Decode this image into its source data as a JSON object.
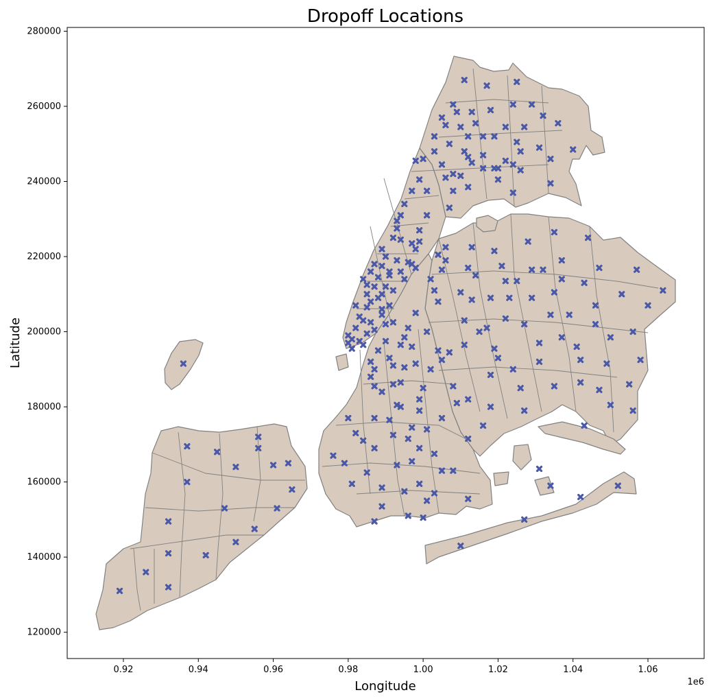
{
  "chart_data": {
    "type": "scatter",
    "title": "Dropoff Locations",
    "xlabel": "Longitude",
    "ylabel": "Latitude",
    "x_offset_label": "1e6",
    "xlim": [
      0.905,
      1.075
    ],
    "ylim": [
      113000,
      281000
    ],
    "x_ticks": [
      0.92,
      0.94,
      0.96,
      0.98,
      1.0,
      1.02,
      1.04,
      1.06
    ],
    "x_tick_labels": [
      "0.92",
      "0.94",
      "0.96",
      "0.98",
      "1.00",
      "1.02",
      "1.04",
      "1.06"
    ],
    "y_ticks": [
      120000,
      140000,
      160000,
      180000,
      200000,
      220000,
      240000,
      260000,
      280000
    ],
    "y_tick_labels": [
      "120000",
      "140000",
      "160000",
      "180000",
      "200000",
      "220000",
      "240000",
      "260000",
      "280000"
    ],
    "grid": false,
    "colors": {
      "land": "#d8cbbe",
      "border": "#808080",
      "marker": "#4a58a8"
    },
    "marker": "x",
    "points": [
      [
        0.936,
        191500
      ],
      [
        0.919,
        131000
      ],
      [
        0.926,
        136000
      ],
      [
        0.932,
        132000
      ],
      [
        0.932,
        141000
      ],
      [
        0.932,
        149500
      ],
      [
        0.937,
        160000
      ],
      [
        0.937,
        169500
      ],
      [
        0.942,
        140500
      ],
      [
        0.945,
        168000
      ],
      [
        0.947,
        153000
      ],
      [
        0.95,
        164000
      ],
      [
        0.95,
        144000
      ],
      [
        0.955,
        147500
      ],
      [
        0.956,
        172000
      ],
      [
        0.956,
        169000
      ],
      [
        0.96,
        164500
      ],
      [
        0.961,
        153000
      ],
      [
        0.964,
        165000
      ],
      [
        0.965,
        158000
      ],
      [
        0.98,
        199000
      ],
      [
        0.98,
        197000
      ],
      [
        0.981,
        195500
      ],
      [
        0.981,
        198000
      ],
      [
        0.982,
        201000
      ],
      [
        0.983,
        197500
      ],
      [
        0.984,
        196500
      ],
      [
        0.983,
        204000
      ],
      [
        0.982,
        207000
      ],
      [
        0.985,
        199500
      ],
      [
        0.984,
        203000
      ],
      [
        0.985,
        206500
      ],
      [
        0.986,
        202500
      ],
      [
        0.987,
        200500
      ],
      [
        0.985,
        210000
      ],
      [
        0.986,
        208000
      ],
      [
        0.987,
        212000
      ],
      [
        0.985,
        212500
      ],
      [
        0.984,
        214000
      ],
      [
        0.986,
        216000
      ],
      [
        0.987,
        218000
      ],
      [
        0.988,
        214500
      ],
      [
        0.988,
        209000
      ],
      [
        0.989,
        206000
      ],
      [
        0.989,
        204500
      ],
      [
        0.99,
        202000
      ],
      [
        0.989,
        210000
      ],
      [
        0.99,
        212000
      ],
      [
        0.989,
        217500
      ],
      [
        0.99,
        220000
      ],
      [
        0.989,
        222000
      ],
      [
        0.991,
        216000
      ],
      [
        0.991,
        215000
      ],
      [
        0.992,
        211000
      ],
      [
        0.991,
        207000
      ],
      [
        0.992,
        202500
      ],
      [
        0.992,
        225000
      ],
      [
        0.993,
        227500
      ],
      [
        0.993,
        229500
      ],
      [
        0.994,
        231000
      ],
      [
        0.995,
        234000
      ],
      [
        0.993,
        219000
      ],
      [
        0.994,
        216000
      ],
      [
        0.995,
        214000
      ],
      [
        0.994,
        224500
      ],
      [
        0.996,
        218500
      ],
      [
        0.997,
        218000
      ],
      [
        0.998,
        217000
      ],
      [
        0.997,
        223500
      ],
      [
        0.998,
        222000
      ],
      [
        0.999,
        227000
      ],
      [
        0.999,
        224000
      ],
      [
        0.997,
        237500
      ],
      [
        0.999,
        240500
      ],
      [
        1.001,
        237500
      ],
      [
        0.998,
        245500
      ],
      [
        1.0,
        246000
      ],
      [
        1.001,
        231000
      ],
      [
        1.003,
        248000
      ],
      [
        1.003,
        252000
      ],
      [
        1.005,
        257000
      ],
      [
        1.005,
        244500
      ],
      [
        1.006,
        241000
      ],
      [
        1.006,
        255000
      ],
      [
        1.007,
        250000
      ],
      [
        1.008,
        242000
      ],
      [
        1.008,
        237500
      ],
      [
        1.007,
        233000
      ],
      [
        1.008,
        260500
      ],
      [
        1.009,
        258500
      ],
      [
        1.01,
        254500
      ],
      [
        1.011,
        267000
      ],
      [
        1.01,
        241500
      ],
      [
        1.011,
        248000
      ],
      [
        1.012,
        246500
      ],
      [
        1.012,
        252000
      ],
      [
        1.013,
        258500
      ],
      [
        1.013,
        245000
      ],
      [
        1.012,
        238500
      ],
      [
        1.014,
        255500
      ],
      [
        1.016,
        252000
      ],
      [
        1.016,
        247000
      ],
      [
        1.016,
        243500
      ],
      [
        1.017,
        265500
      ],
      [
        1.018,
        259000
      ],
      [
        1.019,
        252000
      ],
      [
        1.019,
        243500
      ],
      [
        1.02,
        240500
      ],
      [
        1.02,
        243500
      ],
      [
        1.022,
        254500
      ],
      [
        1.022,
        245500
      ],
      [
        1.024,
        260500
      ],
      [
        1.024,
        244500
      ],
      [
        1.024,
        237000
      ],
      [
        1.025,
        250500
      ],
      [
        1.025,
        266500
      ],
      [
        1.026,
        248000
      ],
      [
        1.026,
        243000
      ],
      [
        1.027,
        254500
      ],
      [
        1.029,
        260500
      ],
      [
        1.031,
        249000
      ],
      [
        1.032,
        257500
      ],
      [
        1.034,
        239500
      ],
      [
        1.034,
        246000
      ],
      [
        1.036,
        255500
      ],
      [
        1.04,
        248500
      ],
      [
        0.986,
        192000
      ],
      [
        0.986,
        188000
      ],
      [
        0.987,
        185500
      ],
      [
        0.987,
        190000
      ],
      [
        0.988,
        195000
      ],
      [
        0.989,
        184000
      ],
      [
        0.99,
        197500
      ],
      [
        0.991,
        193000
      ],
      [
        0.992,
        191000
      ],
      [
        0.992,
        186000
      ],
      [
        0.993,
        180500
      ],
      [
        0.994,
        196500
      ],
      [
        0.994,
        186500
      ],
      [
        0.995,
        190500
      ],
      [
        0.995,
        198500
      ],
      [
        0.996,
        201000
      ],
      [
        0.997,
        196000
      ],
      [
        0.998,
        191500
      ],
      [
        0.998,
        205000
      ],
      [
        0.999,
        182000
      ],
      [
        0.999,
        179000
      ],
      [
        1.0,
        185000
      ],
      [
        1.001,
        200000
      ],
      [
        1.002,
        190000
      ],
      [
        1.003,
        211000
      ],
      [
        1.004,
        195000
      ],
      [
        1.005,
        192500
      ],
      [
        1.004,
        208000
      ],
      [
        1.005,
        216500
      ],
      [
        1.006,
        222500
      ],
      [
        1.004,
        220500
      ],
      [
        1.002,
        214000
      ],
      [
        1.006,
        219000
      ],
      [
        1.007,
        194500
      ],
      [
        1.008,
        185500
      ],
      [
        1.009,
        181000
      ],
      [
        1.01,
        210500
      ],
      [
        1.011,
        203000
      ],
      [
        1.011,
        196500
      ],
      [
        1.012,
        182000
      ],
      [
        1.012,
        217000
      ],
      [
        1.013,
        222500
      ],
      [
        1.013,
        208500
      ],
      [
        1.014,
        215000
      ],
      [
        1.015,
        200000
      ],
      [
        1.016,
        175000
      ],
      [
        1.017,
        201000
      ],
      [
        1.018,
        188500
      ],
      [
        1.018,
        180000
      ],
      [
        1.018,
        209000
      ],
      [
        1.019,
        195500
      ],
      [
        1.019,
        221500
      ],
      [
        1.02,
        193000
      ],
      [
        1.021,
        217500
      ],
      [
        1.022,
        203500
      ],
      [
        1.022,
        213500
      ],
      [
        1.023,
        209000
      ],
      [
        1.024,
        190000
      ],
      [
        1.025,
        213500
      ],
      [
        1.026,
        185000
      ],
      [
        1.027,
        202000
      ],
      [
        1.027,
        179000
      ],
      [
        1.028,
        224000
      ],
      [
        1.029,
        209000
      ],
      [
        1.029,
        216500
      ],
      [
        1.031,
        197000
      ],
      [
        1.031,
        192000
      ],
      [
        1.032,
        216500
      ],
      [
        1.034,
        204500
      ],
      [
        1.035,
        210500
      ],
      [
        1.035,
        226500
      ],
      [
        1.035,
        185500
      ],
      [
        1.037,
        219000
      ],
      [
        1.037,
        214000
      ],
      [
        1.037,
        198500
      ],
      [
        1.039,
        204500
      ],
      [
        1.041,
        196000
      ],
      [
        1.042,
        192500
      ],
      [
        1.042,
        186500
      ],
      [
        1.043,
        213000
      ],
      [
        1.044,
        225000
      ],
      [
        1.043,
        175000
      ],
      [
        1.046,
        207000
      ],
      [
        1.046,
        202000
      ],
      [
        1.047,
        184500
      ],
      [
        1.047,
        217000
      ],
      [
        1.049,
        191500
      ],
      [
        1.05,
        198500
      ],
      [
        1.05,
        180500
      ],
      [
        1.053,
        210000
      ],
      [
        1.055,
        186000
      ],
      [
        1.056,
        200000
      ],
      [
        1.057,
        216500
      ],
      [
        1.056,
        179000
      ],
      [
        1.058,
        192500
      ],
      [
        1.06,
        207000
      ],
      [
        1.064,
        211000
      ],
      [
        0.976,
        167000
      ],
      [
        0.979,
        165000
      ],
      [
        0.98,
        177000
      ],
      [
        0.981,
        159500
      ],
      [
        0.982,
        173000
      ],
      [
        0.984,
        171000
      ],
      [
        0.985,
        162500
      ],
      [
        0.987,
        177000
      ],
      [
        0.987,
        169000
      ],
      [
        0.987,
        149500
      ],
      [
        0.989,
        158500
      ],
      [
        0.989,
        153500
      ],
      [
        0.991,
        176500
      ],
      [
        0.992,
        172500
      ],
      [
        0.993,
        164500
      ],
      [
        0.994,
        180000
      ],
      [
        0.995,
        157500
      ],
      [
        0.996,
        171500
      ],
      [
        0.996,
        151000
      ],
      [
        0.997,
        165500
      ],
      [
        0.997,
        174500
      ],
      [
        0.999,
        159500
      ],
      [
        0.999,
        169000
      ],
      [
        1.0,
        150500
      ],
      [
        1.001,
        155000
      ],
      [
        1.001,
        174000
      ],
      [
        1.003,
        167500
      ],
      [
        1.003,
        157000
      ],
      [
        1.005,
        177000
      ],
      [
        1.005,
        163000
      ],
      [
        1.008,
        163000
      ],
      [
        1.01,
        143000
      ],
      [
        1.012,
        155500
      ],
      [
        1.012,
        171500
      ],
      [
        1.027,
        150000
      ],
      [
        1.031,
        163500
      ],
      [
        1.034,
        159000
      ],
      [
        1.042,
        156000
      ],
      [
        1.052,
        159000
      ]
    ]
  }
}
